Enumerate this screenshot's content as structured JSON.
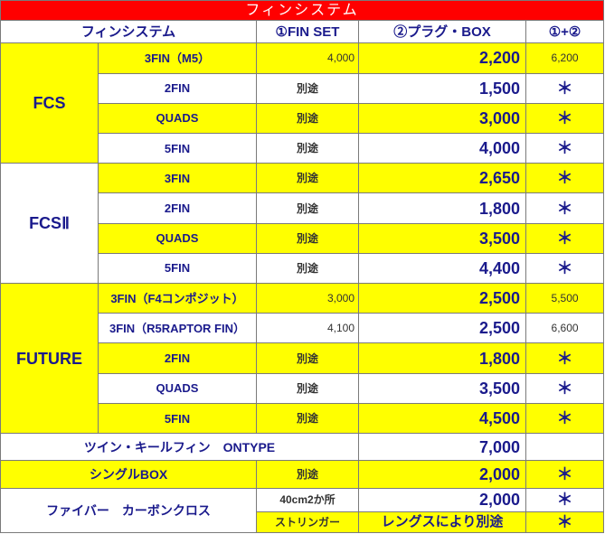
{
  "title": "フィンシステム",
  "headers": {
    "system": "フィンシステム",
    "fin_set": "①FIN SET",
    "plug_box": "②プラグ・BOX",
    "total": "①+②"
  },
  "fcs": {
    "group": "FCS",
    "rows": [
      {
        "name": "3FIN（M5）",
        "fin_set": "4,000",
        "plug_box": "2,200",
        "total": "6,200"
      },
      {
        "name": "2FIN",
        "fin_set": "別途",
        "plug_box": "1,500",
        "total": "＊"
      },
      {
        "name": "QUADS",
        "fin_set": "別途",
        "plug_box": "3,000",
        "total": "＊"
      },
      {
        "name": "5FIN",
        "fin_set": "別途",
        "plug_box": "4,000",
        "total": "＊"
      }
    ]
  },
  "fcs2": {
    "group": "FCSⅡ",
    "rows": [
      {
        "name": "3FIN",
        "fin_set": "別途",
        "plug_box": "2,650",
        "total": "＊"
      },
      {
        "name": "2FIN",
        "fin_set": "別途",
        "plug_box": "1,800",
        "total": "＊"
      },
      {
        "name": "QUADS",
        "fin_set": "別途",
        "plug_box": "3,500",
        "total": "＊"
      },
      {
        "name": "5FIN",
        "fin_set": "別途",
        "plug_box": "4,400",
        "total": "＊"
      }
    ]
  },
  "future": {
    "group": "FUTURE",
    "rows": [
      {
        "name": "3FIN（F4コンポジット）",
        "fin_set": "3,000",
        "plug_box": "2,500",
        "total": "5,500"
      },
      {
        "name": "3FIN（R5RAPTOR FIN）",
        "fin_set": "4,100",
        "plug_box": "2,500",
        "total": "6,600"
      },
      {
        "name": "2FIN",
        "fin_set": "別途",
        "plug_box": "1,800",
        "total": "＊"
      },
      {
        "name": "QUADS",
        "fin_set": "別途",
        "plug_box": "3,500",
        "total": "＊"
      },
      {
        "name": "5FIN",
        "fin_set": "別途",
        "plug_box": "4,500",
        "total": "＊"
      }
    ]
  },
  "twin_keel": {
    "name": "ツイン・キールフィン　ONTYPE",
    "plug_box": "7,000"
  },
  "single_box": {
    "name": "シングルBOX",
    "fin_set": "別途",
    "plug_box": "2,000",
    "total": "＊"
  },
  "fiber": {
    "name": "ファイバー　カーボンクロス",
    "row1_spec": "40cm2か所",
    "row1_price": "2,000",
    "row1_total": "＊",
    "row2_spec": "ストリンガー",
    "row2_note": "レングスにより別途",
    "row2_total": "＊"
  }
}
